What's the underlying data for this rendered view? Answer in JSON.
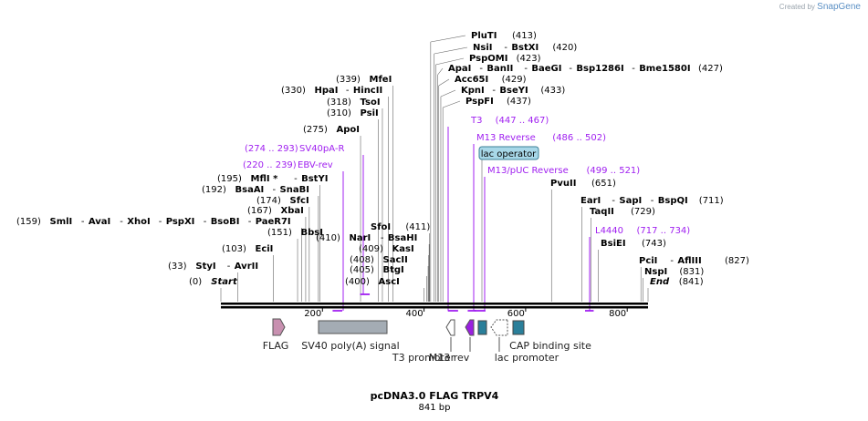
{
  "credit": {
    "prefix": "Created by",
    "brand": "SnapGene"
  },
  "title": "pcDNA3.0 FLAG TRPV4",
  "length": "841 bp",
  "axis": {
    "ticks": [
      {
        "pos": 200,
        "label": "200"
      },
      {
        "pos": 400,
        "label": "400"
      },
      {
        "pos": 600,
        "label": "600"
      },
      {
        "pos": 800,
        "label": "800"
      }
    ]
  },
  "sites": [
    {
      "row": "(0)",
      "enz": [
        "Start"
      ],
      "italic": true,
      "x": 0
    },
    {
      "row": "(33)",
      "enz": [
        "StyI",
        "AvrII"
      ],
      "x": 33
    },
    {
      "row": "(103)",
      "enz": [
        "EciI"
      ],
      "x": 103
    },
    {
      "row": "(151)",
      "enz": [
        "BbsI"
      ],
      "x": 151
    },
    {
      "row": "(159)",
      "enz": [
        "SmlI",
        "AvaI",
        "XhoI",
        "PspXI",
        "BsoBI",
        "PaeR7I"
      ],
      "x": 159
    },
    {
      "row": "(167)",
      "enz": [
        "XbaI"
      ],
      "x": 167
    },
    {
      "row": "(174)",
      "enz": [
        "SfcI"
      ],
      "x": 174
    },
    {
      "row": "(192)",
      "enz": [
        "BsaAI",
        "SnaBI"
      ],
      "x": 192
    },
    {
      "row": "(195)",
      "enz": [
        "MflI *",
        "BstYI"
      ],
      "x": 195
    },
    {
      "row": "(275)",
      "enz": [
        "ApoI"
      ],
      "x": 275
    },
    {
      "row": "(310)",
      "enz": [
        "PsiI"
      ],
      "x": 310
    },
    {
      "row": "(318)",
      "enz": [
        "TsoI"
      ],
      "x": 318
    },
    {
      "row": "(330)",
      "enz": [
        "HpaI",
        "HincII"
      ],
      "x": 330
    },
    {
      "row": "(339)",
      "enz": [
        "MfeI"
      ],
      "x": 339
    },
    {
      "row": "(400)",
      "enz": [
        "AscI"
      ],
      "x": 400
    },
    {
      "row": "(405)",
      "enz": [
        "BtgI"
      ],
      "x": 405
    },
    {
      "row": "(408)",
      "enz": [
        "SacII"
      ],
      "x": 408
    },
    {
      "row": "(409)",
      "enz": [
        "KasI"
      ],
      "x": 409
    },
    {
      "row": "(410)",
      "enz": [
        "NarI",
        "BsaHI"
      ],
      "x": 410
    },
    {
      "row": "(411)",
      "enz": [
        "SfoI"
      ],
      "x": 411
    },
    {
      "row": "(413)",
      "enz": [
        "PluTI"
      ],
      "x": 413
    },
    {
      "row": "(420)",
      "enz": [
        "NsiI",
        "BstXI"
      ],
      "x": 420
    },
    {
      "row": "(423)",
      "enz": [
        "PspOMI"
      ],
      "x": 423
    },
    {
      "row": "(427)",
      "enz": [
        "ApaI",
        "BanII",
        "BaeGI",
        "Bsp1286I",
        "Bme1580I"
      ],
      "x": 427
    },
    {
      "row": "(429)",
      "enz": [
        "Acc65I"
      ],
      "x": 429
    },
    {
      "row": "(433)",
      "enz": [
        "KpnI",
        "BseYI"
      ],
      "x": 433
    },
    {
      "row": "(437)",
      "enz": [
        "PspFI"
      ],
      "x": 437
    },
    {
      "row": "(651)",
      "enz": [
        "PvuII"
      ],
      "x": 651
    },
    {
      "row": "(711)",
      "enz": [
        "EarI",
        "SapI",
        "BspQI"
      ],
      "x": 711
    },
    {
      "row": "(729)",
      "enz": [
        "TaqII"
      ],
      "x": 729
    },
    {
      "row": "(743)",
      "enz": [
        "BsiEI"
      ],
      "x": 743
    },
    {
      "row": "(827)",
      "enz": [
        "PciI",
        "AflIII"
      ],
      "x": 827
    },
    {
      "row": "(831)",
      "enz": [
        "NspI"
      ],
      "x": 831
    },
    {
      "row": "(841)",
      "enz": [
        "End"
      ],
      "italic": true,
      "x": 841
    }
  ],
  "primers": [
    {
      "name": "SV40pA-R",
      "range": "(274 .. 293)"
    },
    {
      "name": "EBV-rev",
      "range": "(220 .. 239)"
    },
    {
      "name": "T3",
      "range": "(447 .. 467)"
    },
    {
      "name": "M13 Reverse",
      "range": "(486 .. 502)"
    },
    {
      "name": "M13/pUC Reverse",
      "range": "(499 .. 521)"
    },
    {
      "name": "L4440",
      "range": "(717 .. 734)"
    }
  ],
  "lac_operator": "lac operator",
  "features": [
    {
      "name": "FLAG",
      "color": "#c890b0"
    },
    {
      "name": "SV40 poly(A) signal",
      "color": "#a4acb4"
    },
    {
      "name": "T3 promoter",
      "color": "#ffffff"
    },
    {
      "name": "M13 rev",
      "color": "#9a20e0"
    },
    {
      "name": "lac promoter",
      "color": "#ffffff"
    },
    {
      "name": "CAP binding site",
      "color": "#2a7f9a"
    }
  ],
  "colors": {
    "primer": "#a020f0",
    "backbone": "#000000",
    "lacop": "#a8d8e8"
  }
}
